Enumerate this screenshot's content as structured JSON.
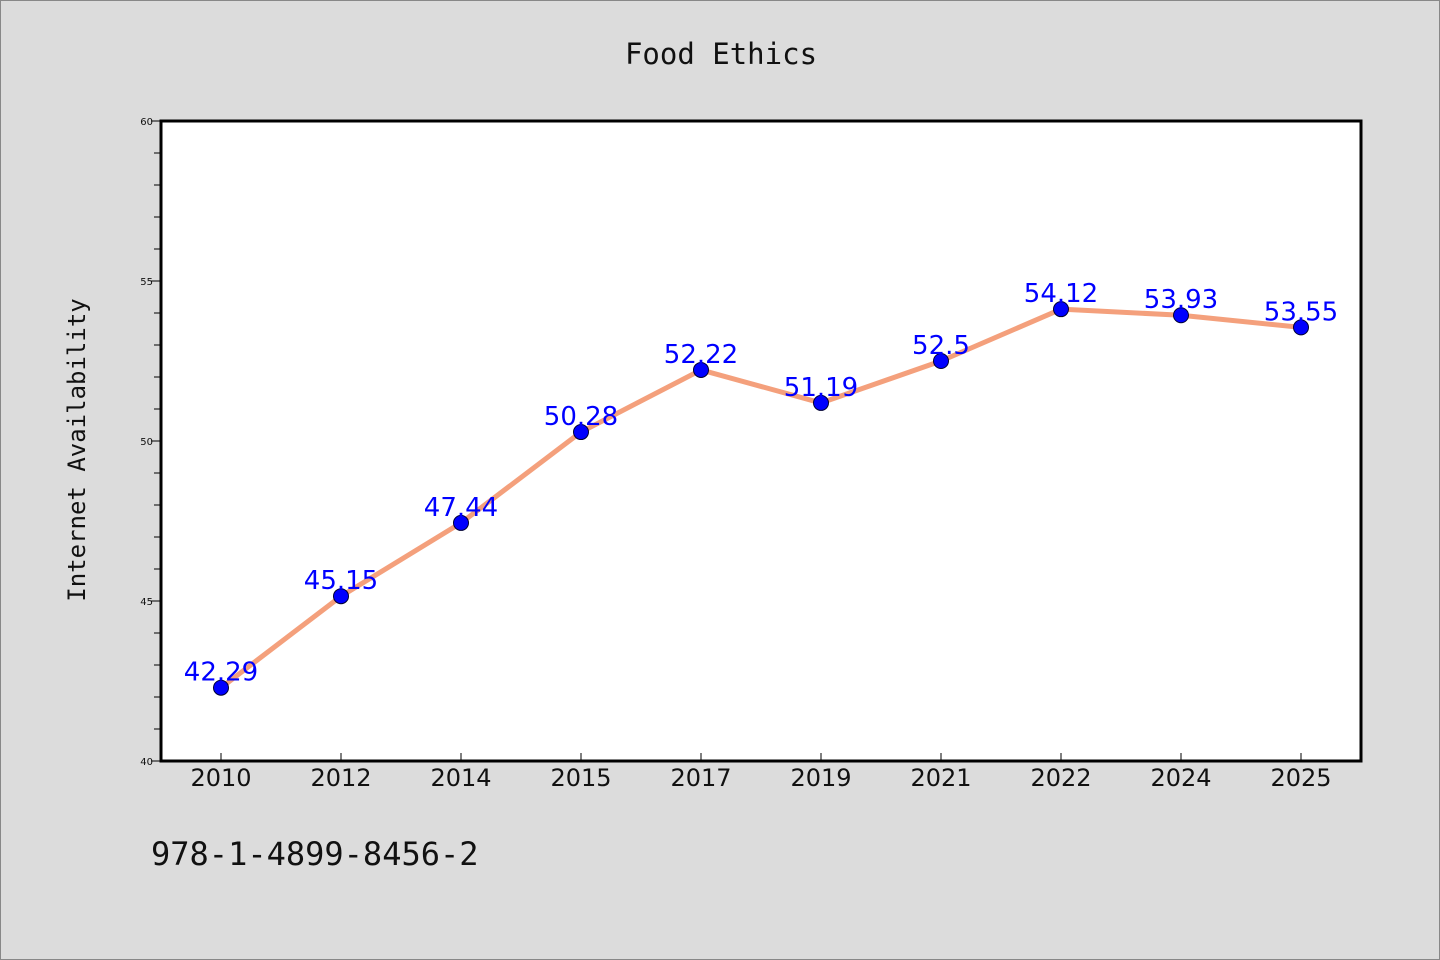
{
  "chart_data": {
    "type": "line",
    "title": "Food Ethics",
    "xlabel": "",
    "ylabel": "Internet Availability",
    "categories": [
      "2010",
      "2012",
      "2014",
      "2015",
      "2017",
      "2019",
      "2021",
      "2022",
      "2024",
      "2025"
    ],
    "series": [
      {
        "values": [
          42.29,
          45.15,
          47.44,
          50.28,
          52.22,
          51.19,
          52.5,
          54.12,
          53.93,
          53.55
        ],
        "line_color": "#f4a07c",
        "marker_color": "#0000ff"
      }
    ],
    "data_labels": [
      "42.29",
      "45.15",
      "47.44",
      "50.28",
      "52.22",
      "51.19",
      "52.5",
      "54.12",
      "53.93",
      "53.55"
    ],
    "ylim": [
      40,
      60
    ],
    "yticks": [
      "40",
      "45",
      "50",
      "55",
      "60"
    ],
    "grid": false,
    "legend": false
  },
  "footer": {
    "code": "978-1-4899-8456-2"
  },
  "colors": {
    "background": "#dcdcdc",
    "plot_background": "#ffffff",
    "line": "#f4a07c",
    "marker": "#0000ff",
    "data_label": "#0000ff"
  }
}
